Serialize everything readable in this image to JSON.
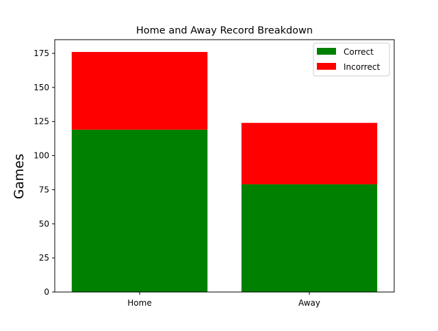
{
  "chart_data": {
    "type": "bar",
    "stacked": true,
    "title": "Home and Away Record Breakdown",
    "xlabel": "",
    "ylabel": "Games",
    "categories": [
      "Home",
      "Away"
    ],
    "series": [
      {
        "name": "Correct",
        "values": [
          119,
          79
        ],
        "color": "#008000"
      },
      {
        "name": "Incorrect",
        "values": [
          57,
          45
        ],
        "color": "#ff0000"
      }
    ],
    "ylim": [
      0,
      185
    ],
    "yticks": [
      0,
      25,
      50,
      75,
      100,
      125,
      150,
      175
    ],
    "grid": false,
    "legend_position": "top-right"
  }
}
